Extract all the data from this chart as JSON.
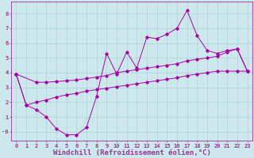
{
  "title": "",
  "xlabel": "Windchill (Refroidissement éolien,°C)",
  "ylabel": "",
  "xlim": [
    -0.5,
    23.5
  ],
  "ylim": [
    -0.6,
    8.8
  ],
  "xticks": [
    0,
    1,
    2,
    3,
    4,
    5,
    6,
    7,
    8,
    9,
    10,
    11,
    12,
    13,
    14,
    15,
    16,
    17,
    18,
    19,
    20,
    21,
    22,
    23
  ],
  "yticks": [
    0,
    1,
    2,
    3,
    4,
    5,
    6,
    7,
    8
  ],
  "ytick_labels": [
    "-0",
    "1",
    "2",
    "3",
    "4",
    "5",
    "6",
    "7",
    "8"
  ],
  "bg_color": "#cce8ec",
  "grid_color": "#aacccc",
  "line_color": "#aa00aa",
  "data_line_x": [
    0,
    1,
    2,
    3,
    4,
    5,
    6,
    7,
    8,
    9,
    10,
    11,
    12,
    13,
    14,
    15,
    16,
    17,
    18,
    19,
    20,
    21,
    22,
    23
  ],
  "data_line_y": [
    3.9,
    1.8,
    1.5,
    1.0,
    0.2,
    -0.2,
    -0.2,
    0.3,
    2.4,
    5.3,
    3.9,
    5.4,
    4.3,
    6.4,
    6.3,
    6.6,
    7.0,
    8.2,
    6.5,
    5.5,
    5.3,
    5.5,
    5.6,
    4.1
  ],
  "upper_line_x": [
    0,
    2,
    3,
    4,
    5,
    6,
    7,
    8,
    9,
    10,
    11,
    12,
    13,
    14,
    15,
    16,
    17,
    18,
    19,
    20,
    21,
    22,
    23
  ],
  "upper_line_y": [
    3.9,
    3.35,
    3.35,
    3.4,
    3.45,
    3.5,
    3.6,
    3.7,
    3.8,
    4.0,
    4.1,
    4.2,
    4.3,
    4.4,
    4.5,
    4.6,
    4.8,
    4.9,
    5.0,
    5.1,
    5.4,
    5.6,
    4.1
  ],
  "lower_line_x": [
    0,
    1,
    2,
    3,
    4,
    5,
    6,
    7,
    8,
    9,
    10,
    11,
    12,
    13,
    14,
    15,
    16,
    17,
    18,
    19,
    20,
    21,
    22,
    23
  ],
  "lower_line_y": [
    3.9,
    1.8,
    2.0,
    2.15,
    2.35,
    2.5,
    2.6,
    2.75,
    2.85,
    2.95,
    3.05,
    3.15,
    3.25,
    3.35,
    3.45,
    3.55,
    3.65,
    3.8,
    3.9,
    4.0,
    4.1,
    4.1,
    4.1,
    4.1
  ],
  "font_color": "#993399",
  "tick_fontsize": 5.0,
  "xlabel_fontsize": 6.5,
  "marker_size": 1.8,
  "line_width": 0.7
}
